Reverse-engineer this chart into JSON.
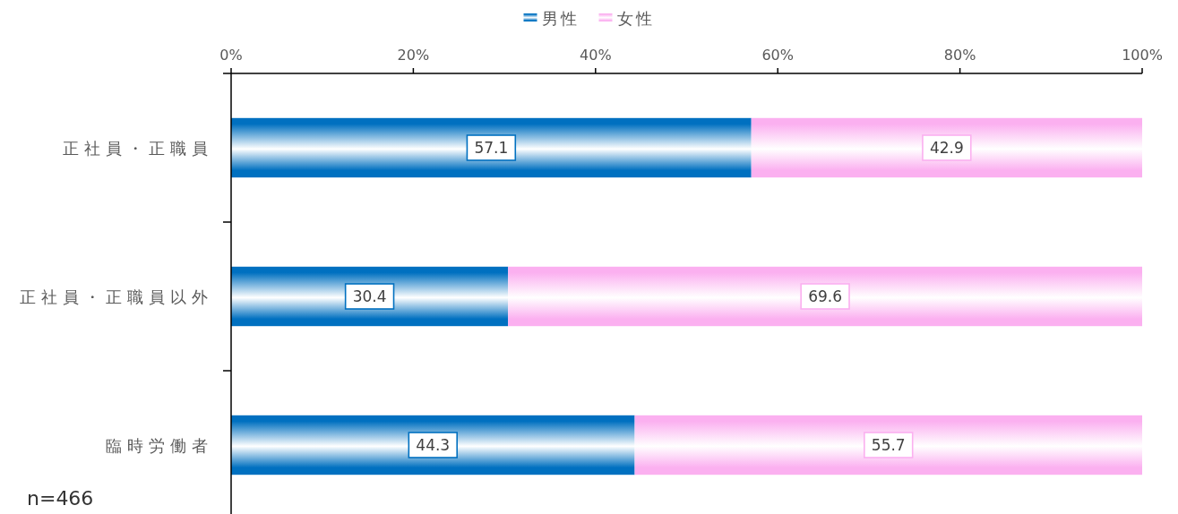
{
  "chart_data": {
    "type": "bar",
    "orientation": "horizontal",
    "stacked": true,
    "categories": [
      "正社員・正職員",
      "正社員・正職員以外",
      "臨時労働者"
    ],
    "series": [
      {
        "name": "男性",
        "color": "#0070c0",
        "values": [
          57.1,
          30.4,
          44.3
        ]
      },
      {
        "name": "女性",
        "color": "#fbb0f0",
        "values": [
          42.9,
          69.6,
          55.7
        ]
      }
    ],
    "xlim": [
      0,
      100
    ],
    "xticks": [
      {
        "value": 0,
        "label": "0%"
      },
      {
        "value": 20,
        "label": "20%"
      },
      {
        "value": 40,
        "label": "40%"
      },
      {
        "value": 60,
        "label": "60%"
      },
      {
        "value": 80,
        "label": "80%"
      },
      {
        "value": 100,
        "label": "100%"
      }
    ],
    "legend": "top",
    "data_labels": true,
    "annotations": [
      "n=466"
    ]
  }
}
